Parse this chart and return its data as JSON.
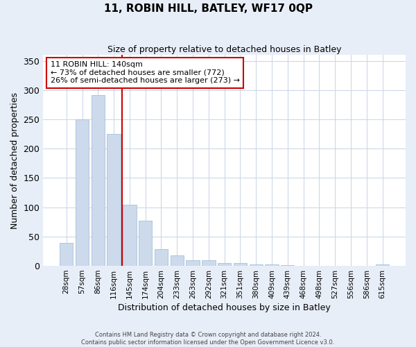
{
  "title": "11, ROBIN HILL, BATLEY, WF17 0QP",
  "subtitle": "Size of property relative to detached houses in Batley",
  "xlabel": "Distribution of detached houses by size in Batley",
  "ylabel": "Number of detached properties",
  "bar_labels": [
    "28sqm",
    "57sqm",
    "86sqm",
    "116sqm",
    "145sqm",
    "174sqm",
    "204sqm",
    "233sqm",
    "263sqm",
    "292sqm",
    "321sqm",
    "351sqm",
    "380sqm",
    "409sqm",
    "439sqm",
    "468sqm",
    "498sqm",
    "527sqm",
    "556sqm",
    "586sqm",
    "615sqm"
  ],
  "bar_values": [
    39,
    250,
    292,
    225,
    104,
    77,
    29,
    18,
    10,
    9,
    5,
    5,
    3,
    2,
    1,
    0,
    0,
    0,
    0,
    0,
    2
  ],
  "bar_color": "#ccdaec",
  "bar_edge_color": "#a8c0d8",
  "vline_x_pos": 3.5,
  "vline_color": "#cc0000",
  "annotation_text": "11 ROBIN HILL: 140sqm\n← 73% of detached houses are smaller (772)\n26% of semi-detached houses are larger (273) →",
  "annotation_box_color": "#ffffff",
  "annotation_box_edge_color": "#cc0000",
  "ylim": [
    0,
    360
  ],
  "yticks": [
    0,
    50,
    100,
    150,
    200,
    250,
    300,
    350
  ],
  "footer_line1": "Contains HM Land Registry data © Crown copyright and database right 2024.",
  "footer_line2": "Contains public sector information licensed under the Open Government Licence v3.0.",
  "background_color": "#e8eef8",
  "plot_background_color": "#ffffff",
  "grid_color": "#c8d4e4"
}
